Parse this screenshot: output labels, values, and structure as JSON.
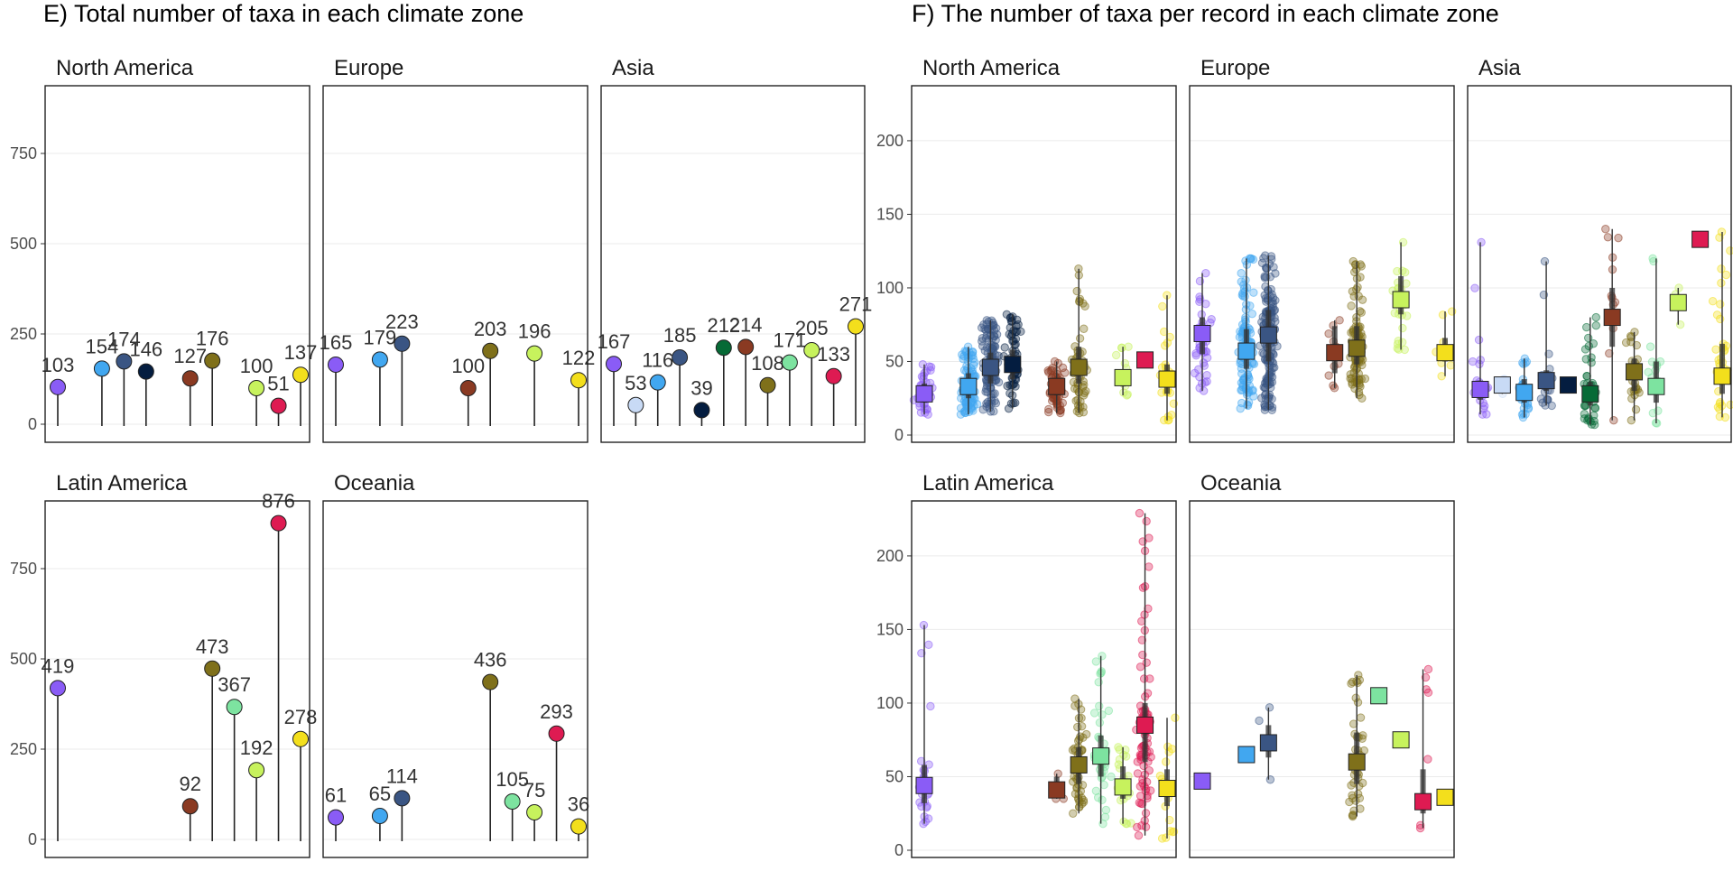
{
  "figure": {
    "left_title": "E) Total number of taxa in each climate zone",
    "right_title": "F) The number of taxa per record in each climate zone"
  },
  "colors": {
    "Cfa": "#8a5cf6",
    "Cfb": "#c8daf5",
    "Cfc": "#41a7f0",
    "Dfa": "#3a5583",
    "Dfb": "#041d40",
    "Dfc": "#066a36",
    "Af": "#8a3a22",
    "Am": "#7f701a",
    "Aw": "#7de3a0",
    "BSh": "#c7f25d",
    "BWh": "#de1b52",
    "Csa": "#f3df1c"
  },
  "chart_data": [
    {
      "type": "lollipop",
      "panel_group": "E",
      "ylim": [
        0,
        1000
      ],
      "yticks": [
        0,
        250,
        500,
        750
      ],
      "grid": true,
      "facets": [
        {
          "name": "North America",
          "points": [
            {
              "zone": "Cfa",
              "slot": 0,
              "value": 103
            },
            {
              "zone": "Cfc",
              "slot": 2,
              "value": 154
            },
            {
              "zone": "Dfa",
              "slot": 3,
              "value": 174
            },
            {
              "zone": "Dfb",
              "slot": 4,
              "value": 146
            },
            {
              "zone": "Af",
              "slot": 6,
              "value": 127
            },
            {
              "zone": "Am",
              "slot": 7,
              "value": 176
            },
            {
              "zone": "BSh",
              "slot": 9,
              "value": 100
            },
            {
              "zone": "BWh",
              "slot": 10,
              "value": 51
            },
            {
              "zone": "Csa",
              "slot": 11,
              "value": 137
            }
          ]
        },
        {
          "name": "Europe",
          "points": [
            {
              "zone": "Cfa",
              "slot": 0,
              "value": 165
            },
            {
              "zone": "Cfc",
              "slot": 2,
              "value": 179
            },
            {
              "zone": "Dfa",
              "slot": 3,
              "value": 223
            },
            {
              "zone": "Af",
              "slot": 6,
              "value": 100
            },
            {
              "zone": "Am",
              "slot": 7,
              "value": 203
            },
            {
              "zone": "BSh",
              "slot": 9,
              "value": 196
            },
            {
              "zone": "Csa",
              "slot": 11,
              "value": 122
            }
          ]
        },
        {
          "name": "Asia",
          "points": [
            {
              "zone": "Cfa",
              "slot": 0,
              "value": 167
            },
            {
              "zone": "Cfb",
              "slot": 1,
              "value": 53
            },
            {
              "zone": "Cfc",
              "slot": 2,
              "value": 116
            },
            {
              "zone": "Dfa",
              "slot": 3,
              "value": 185
            },
            {
              "zone": "Dfb",
              "slot": 4,
              "value": 39
            },
            {
              "zone": "Dfc",
              "slot": 5,
              "value": 212
            },
            {
              "zone": "Af",
              "slot": 6,
              "value": 214
            },
            {
              "zone": "Am",
              "slot": 7,
              "value": 108
            },
            {
              "zone": "Aw",
              "slot": 8,
              "value": 171
            },
            {
              "zone": "BSh",
              "slot": 9,
              "value": 205
            },
            {
              "zone": "BWh",
              "slot": 10,
              "value": 133
            },
            {
              "zone": "Csa",
              "slot": 11,
              "value": 271
            }
          ]
        },
        {
          "name": "Latin America",
          "points": [
            {
              "zone": "Cfa",
              "slot": 0,
              "value": 419
            },
            {
              "zone": "Af",
              "slot": 6,
              "value": 92
            },
            {
              "zone": "Am",
              "slot": 7,
              "value": 473
            },
            {
              "zone": "Aw",
              "slot": 8,
              "value": 367
            },
            {
              "zone": "BSh",
              "slot": 9,
              "value": 192
            },
            {
              "zone": "BWh",
              "slot": 10,
              "value": 876
            },
            {
              "zone": "Csa",
              "slot": 11,
              "value": 278
            }
          ]
        },
        {
          "name": "Oceania",
          "points": [
            {
              "zone": "Cfa",
              "slot": 0,
              "value": 61
            },
            {
              "zone": "Cfc",
              "slot": 2,
              "value": 65
            },
            {
              "zone": "Dfa",
              "slot": 3,
              "value": 114
            },
            {
              "zone": "Am",
              "slot": 7,
              "value": 436
            },
            {
              "zone": "Aw",
              "slot": 8,
              "value": 105
            },
            {
              "zone": "BSh",
              "slot": 9,
              "value": 75
            },
            {
              "zone": "BWh",
              "slot": 10,
              "value": 293
            },
            {
              "zone": "Csa",
              "slot": 11,
              "value": 36
            }
          ]
        }
      ]
    },
    {
      "type": "jitter-boxplot",
      "panel_group": "F",
      "ylim": [
        0,
        230
      ],
      "yticks": [
        0,
        50,
        100,
        150,
        200
      ],
      "grid": true,
      "facets": [
        {
          "name": "North America",
          "groups": [
            {
              "zone": "Cfa",
              "slot": 0,
              "median": 28,
              "q1": 22,
              "q3": 35,
              "lo": 14,
              "hi": 48,
              "n": 40
            },
            {
              "zone": "Cfc",
              "slot": 2,
              "median": 33,
              "q1": 25,
              "q3": 42,
              "lo": 14,
              "hi": 60,
              "n": 90
            },
            {
              "zone": "Dfa",
              "slot": 3,
              "median": 46,
              "q1": 35,
              "q3": 56,
              "lo": 16,
              "hi": 78,
              "n": 120
            },
            {
              "zone": "Dfb",
              "slot": 4,
              "median": 48,
              "q1": 38,
              "q3": 58,
              "lo": 18,
              "hi": 82,
              "n": 60
            },
            {
              "zone": "Af",
              "slot": 6,
              "median": 33,
              "q1": 27,
              "q3": 38,
              "lo": 15,
              "hi": 50,
              "n": 70
            },
            {
              "zone": "Am",
              "slot": 7,
              "median": 46,
              "q1": 35,
              "q3": 60,
              "lo": 15,
              "hi": 113,
              "n": 60
            },
            {
              "zone": "BSh",
              "slot": 9,
              "median": 39,
              "q1": 33,
              "q3": 44,
              "lo": 27,
              "hi": 60,
              "n": 12
            },
            {
              "zone": "BWh",
              "slot": 10,
              "median": 51,
              "q1": 51,
              "q3": 51,
              "lo": 51,
              "hi": 51,
              "n": 1
            },
            {
              "zone": "Csa",
              "slot": 11,
              "median": 38,
              "q1": 28,
              "q3": 48,
              "lo": 10,
              "hi": 95,
              "n": 30
            }
          ]
        },
        {
          "name": "Europe",
          "groups": [
            {
              "zone": "Cfa",
              "slot": 0,
              "median": 69,
              "q1": 55,
              "q3": 80,
              "lo": 30,
              "hi": 110,
              "n": 40
            },
            {
              "zone": "Cfc",
              "slot": 2,
              "median": 57,
              "q1": 45,
              "q3": 72,
              "lo": 18,
              "hi": 120,
              "n": 110
            },
            {
              "zone": "Dfa",
              "slot": 3,
              "median": 68,
              "q1": 50,
              "q3": 85,
              "lo": 17,
              "hi": 122,
              "n": 160
            },
            {
              "zone": "Af",
              "slot": 6,
              "median": 56,
              "q1": 42,
              "q3": 74,
              "lo": 32,
              "hi": 78,
              "n": 12
            },
            {
              "zone": "Am",
              "slot": 7,
              "median": 59,
              "q1": 48,
              "q3": 74,
              "lo": 25,
              "hi": 118,
              "n": 100
            },
            {
              "zone": "BSh",
              "slot": 9,
              "median": 92,
              "q1": 82,
              "q3": 108,
              "lo": 58,
              "hi": 131,
              "n": 25
            },
            {
              "zone": "Csa",
              "slot": 11,
              "median": 56,
              "q1": 50,
              "q3": 66,
              "lo": 40,
              "hi": 84,
              "n": 8
            }
          ]
        },
        {
          "name": "Asia",
          "groups": [
            {
              "zone": "Cfa",
              "slot": 0,
              "median": 31,
              "q1": 24,
              "q3": 37,
              "lo": 14,
              "hi": 131,
              "n": 25
            },
            {
              "zone": "Cfb",
              "slot": 1,
              "median": 34,
              "q1": 31,
              "q3": 37,
              "lo": 28,
              "hi": 38,
              "n": 3
            },
            {
              "zone": "Cfc",
              "slot": 2,
              "median": 29,
              "q1": 22,
              "q3": 38,
              "lo": 12,
              "hi": 52,
              "n": 35
            },
            {
              "zone": "Dfa",
              "slot": 3,
              "median": 37,
              "q1": 30,
              "q3": 44,
              "lo": 20,
              "hi": 118,
              "n": 25
            },
            {
              "zone": "Dfb",
              "slot": 4,
              "median": 34,
              "q1": 34,
              "q3": 34,
              "lo": 34,
              "hi": 34,
              "n": 1
            },
            {
              "zone": "Dfc",
              "slot": 5,
              "median": 28,
              "q1": 20,
              "q3": 36,
              "lo": 7,
              "hi": 80,
              "n": 45
            },
            {
              "zone": "Af",
              "slot": 6,
              "median": 80,
              "q1": 60,
              "q3": 100,
              "lo": 10,
              "hi": 140,
              "n": 15
            },
            {
              "zone": "Am",
              "slot": 7,
              "median": 43,
              "q1": 30,
              "q3": 52,
              "lo": 10,
              "hi": 70,
              "n": 25
            },
            {
              "zone": "Aw",
              "slot": 8,
              "median": 33,
              "q1": 22,
              "q3": 50,
              "lo": 8,
              "hi": 120,
              "n": 15
            },
            {
              "zone": "BSh",
              "slot": 9,
              "median": 90,
              "q1": 85,
              "q3": 95,
              "lo": 75,
              "hi": 100,
              "n": 4
            },
            {
              "zone": "BWh",
              "slot": 10,
              "median": 133,
              "q1": 133,
              "q3": 133,
              "lo": 133,
              "hi": 133,
              "n": 1
            },
            {
              "zone": "Csa",
              "slot": 11,
              "median": 40,
              "q1": 28,
              "q3": 62,
              "lo": 12,
              "hi": 138,
              "n": 40
            }
          ]
        },
        {
          "name": "Latin America",
          "groups": [
            {
              "zone": "Cfa",
              "slot": 0,
              "median": 44,
              "q1": 32,
              "q3": 58,
              "lo": 18,
              "hi": 153,
              "n": 30
            },
            {
              "zone": "Af",
              "slot": 6,
              "median": 41,
              "q1": 38,
              "q3": 50,
              "lo": 35,
              "hi": 52,
              "n": 3
            },
            {
              "zone": "Am",
              "slot": 7,
              "median": 58,
              "q1": 45,
              "q3": 70,
              "lo": 25,
              "hi": 103,
              "n": 50
            },
            {
              "zone": "Aw",
              "slot": 8,
              "median": 64,
              "q1": 50,
              "q3": 78,
              "lo": 18,
              "hi": 132,
              "n": 40
            },
            {
              "zone": "BSh",
              "slot": 9,
              "median": 43,
              "q1": 35,
              "q3": 57,
              "lo": 18,
              "hi": 70,
              "n": 20
            },
            {
              "zone": "BWh",
              "slot": 10,
              "median": 85,
              "q1": 60,
              "q3": 100,
              "lo": 10,
              "hi": 229,
              "n": 90
            },
            {
              "zone": "Csa",
              "slot": 11,
              "median": 42,
              "q1": 30,
              "q3": 55,
              "lo": 8,
              "hi": 90,
              "n": 20
            }
          ]
        },
        {
          "name": "Oceania",
          "groups": [
            {
              "zone": "Cfa",
              "slot": 0,
              "median": 47,
              "q1": 47,
              "q3": 47,
              "lo": 47,
              "hi": 47,
              "n": 1
            },
            {
              "zone": "Cfc",
              "slot": 2,
              "median": 65,
              "q1": 65,
              "q3": 65,
              "lo": 65,
              "hi": 65,
              "n": 1
            },
            {
              "zone": "Dfa",
              "slot": 3,
              "median": 73,
              "q1": 63,
              "q3": 85,
              "lo": 48,
              "hi": 97,
              "n": 3
            },
            {
              "zone": "Am",
              "slot": 7,
              "median": 60,
              "q1": 45,
              "q3": 80,
              "lo": 23,
              "hi": 119,
              "n": 40
            },
            {
              "zone": "Aw",
              "slot": 8,
              "median": 105,
              "q1": 105,
              "q3": 105,
              "lo": 105,
              "hi": 105,
              "n": 1
            },
            {
              "zone": "BSh",
              "slot": 9,
              "median": 75,
              "q1": 75,
              "q3": 75,
              "lo": 75,
              "hi": 75,
              "n": 1
            },
            {
              "zone": "BWh",
              "slot": 10,
              "median": 33,
              "q1": 25,
              "q3": 55,
              "lo": 15,
              "hi": 123,
              "n": 8
            },
            {
              "zone": "Csa",
              "slot": 11,
              "median": 36,
              "q1": 36,
              "q3": 36,
              "lo": 36,
              "hi": 36,
              "n": 1
            }
          ]
        }
      ]
    }
  ]
}
